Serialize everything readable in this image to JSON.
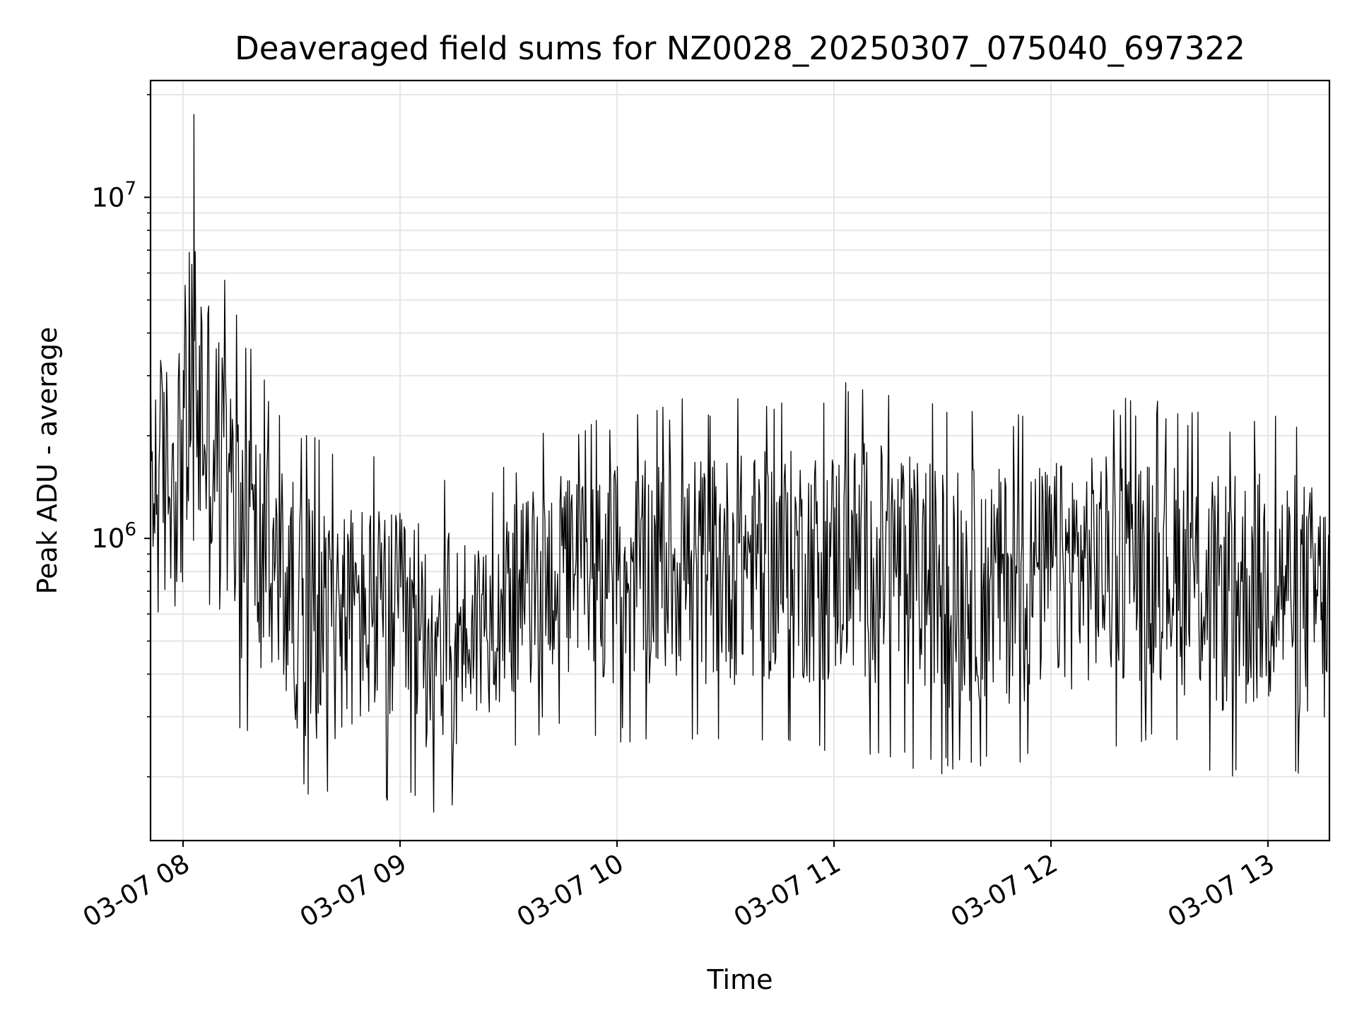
{
  "chart_data": {
    "type": "line",
    "title": "Deaveraged field sums for NZ0028_20250307_075040_697322",
    "xlabel": "Time",
    "ylabel": "Peak ADU - average",
    "x_axis": {
      "type": "datetime",
      "range": [
        "2025-03-07 07:51",
        "2025-03-07 13:17"
      ],
      "ticks": [
        {
          "value": "2025-03-07 08:00",
          "label": "03-07 08"
        },
        {
          "value": "2025-03-07 09:00",
          "label": "03-07 09"
        },
        {
          "value": "2025-03-07 10:00",
          "label": "03-07 10"
        },
        {
          "value": "2025-03-07 11:00",
          "label": "03-07 11"
        },
        {
          "value": "2025-03-07 12:00",
          "label": "03-07 12"
        },
        {
          "value": "2025-03-07 13:00",
          "label": "03-07 13"
        }
      ]
    },
    "y_axis": {
      "scale": "log",
      "range": [
        130000,
        22000000
      ],
      "ticks": [
        {
          "value": 1000000,
          "base": "10",
          "exp": "6"
        },
        {
          "value": 10000000,
          "base": "10",
          "exp": "7"
        }
      ]
    },
    "grid": true,
    "line_color": "#000000",
    "envelope": [
      {
        "t": "2025-03-07 07:51",
        "low": 300000,
        "high": 6000000
      },
      {
        "t": "2025-03-07 07:58",
        "low": 400000,
        "high": 5200000
      },
      {
        "t": "2025-03-07 08:03",
        "low": 350000,
        "high": 17500000
      },
      {
        "t": "2025-03-07 08:12",
        "low": 300000,
        "high": 5400000
      },
      {
        "t": "2025-03-07 08:22",
        "low": 220000,
        "high": 3000000
      },
      {
        "t": "2025-03-07 08:35",
        "low": 160000,
        "high": 2000000
      },
      {
        "t": "2025-03-07 08:50",
        "low": 170000,
        "high": 1900000
      },
      {
        "t": "2025-03-07 09:05",
        "low": 160000,
        "high": 1700000
      },
      {
        "t": "2025-03-07 09:15",
        "low": 150000,
        "high": 1500000
      },
      {
        "t": "2025-03-07 09:25",
        "low": 220000,
        "high": 1500000
      },
      {
        "t": "2025-03-07 09:40",
        "low": 270000,
        "high": 2100000
      },
      {
        "t": "2025-03-07 10:00",
        "low": 250000,
        "high": 2400000
      },
      {
        "t": "2025-03-07 10:20",
        "low": 240000,
        "high": 2600000
      },
      {
        "t": "2025-03-07 10:45",
        "low": 240000,
        "high": 2700000
      },
      {
        "t": "2025-03-07 11:10",
        "low": 230000,
        "high": 3000000
      },
      {
        "t": "2025-03-07 11:30",
        "low": 200000,
        "high": 2500000
      },
      {
        "t": "2025-03-07 11:50",
        "low": 210000,
        "high": 2400000
      },
      {
        "t": "2025-03-07 12:10",
        "low": 240000,
        "high": 2600000
      },
      {
        "t": "2025-03-07 12:30",
        "low": 250000,
        "high": 2600000
      },
      {
        "t": "2025-03-07 12:45",
        "low": 190000,
        "high": 2300000
      },
      {
        "t": "2025-03-07 13:05",
        "low": 190000,
        "high": 2500000
      },
      {
        "t": "2025-03-07 13:17",
        "low": 160000,
        "high": 2100000
      }
    ]
  }
}
